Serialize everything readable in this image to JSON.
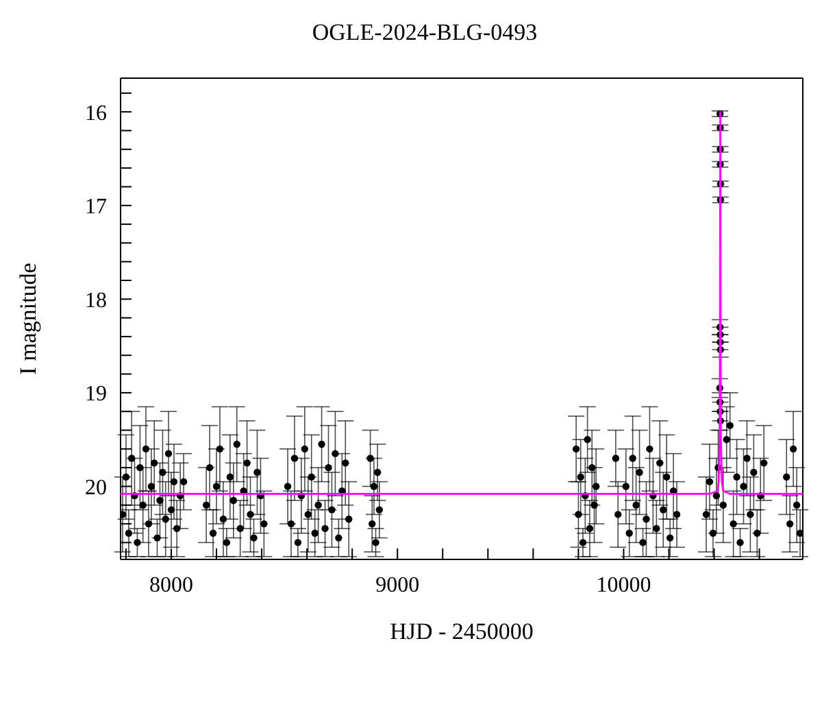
{
  "chart_data": {
    "type": "scatter",
    "title": "OGLE-2024-BLG-0493",
    "xlabel": "HJD - 2450000",
    "ylabel": "I magnitude",
    "xlim": [
      7776,
      10792
    ],
    "ylim": [
      20.78,
      15.64
    ],
    "xticks": [
      {
        "value": 7800,
        "label": null
      },
      8000,
      {
        "value": 8200,
        "label": null
      },
      {
        "value": 8400,
        "label": null
      },
      {
        "value": 8600,
        "label": null
      },
      {
        "value": 8800,
        "label": null
      },
      9000,
      {
        "value": 9200,
        "label": null
      },
      {
        "value": 9400,
        "label": null
      },
      {
        "value": 9600,
        "label": null
      },
      {
        "value": 9800,
        "label": null
      },
      10000,
      {
        "value": 10200,
        "label": null
      },
      {
        "value": 10400,
        "label": null
      },
      {
        "value": 10600,
        "label": null
      }
    ],
    "yticks": [
      {
        "value": 15.8,
        "label": null
      },
      16,
      {
        "value": 16.2,
        "label": null
      },
      {
        "value": 16.4,
        "label": null
      },
      {
        "value": 16.6,
        "label": null
      },
      {
        "value": 16.8,
        "label": null
      },
      17,
      {
        "value": 17.2,
        "label": null
      },
      {
        "value": 17.4,
        "label": null
      },
      {
        "value": 17.6,
        "label": null
      },
      {
        "value": 17.8,
        "label": null
      },
      18,
      {
        "value": 18.2,
        "label": null
      },
      {
        "value": 18.4,
        "label": null
      },
      {
        "value": 18.6,
        "label": null
      },
      {
        "value": 18.8,
        "label": null
      },
      19,
      {
        "value": 19.2,
        "label": null
      },
      {
        "value": 19.4,
        "label": null
      },
      {
        "value": 19.6,
        "label": null
      },
      {
        "value": 19.8,
        "label": null
      },
      20,
      {
        "value": 20.2,
        "label": null
      },
      {
        "value": 20.4,
        "label": null
      },
      {
        "value": 20.6,
        "label": null
      }
    ],
    "grid": false,
    "legend": false,
    "marker": "circle",
    "series": [
      {
        "color": "#000000",
        "x": [
          7785,
          7800,
          7812,
          7825,
          7838,
          7850,
          7862,
          7875,
          7888,
          7900,
          7912,
          7925,
          7938,
          7950,
          7962,
          7975,
          7988,
          8000,
          8012,
          8025,
          8040,
          8055,
          8155,
          8170,
          8185,
          8200,
          8215,
          8230,
          8245,
          8260,
          8275,
          8290,
          8305,
          8320,
          8335,
          8350,
          8365,
          8380,
          8395,
          8410,
          8515,
          8530,
          8545,
          8560,
          8575,
          8590,
          8605,
          8620,
          8635,
          8650,
          8665,
          8680,
          8695,
          8710,
          8725,
          8740,
          8755,
          8770,
          8785,
          8880,
          8888,
          8896,
          8904,
          8912,
          8920,
          9790,
          9800,
          9810,
          9820,
          9830,
          9840,
          9850,
          9860,
          9870,
          9878,
          9965,
          9975,
          10010,
          10025,
          10040,
          10055,
          10070,
          10085,
          10100,
          10115,
          10130,
          10145,
          10160,
          10175,
          10190,
          10205,
          10220,
          10235,
          10365,
          10380,
          10395,
          10410,
          10418,
          10426,
          10427,
          10427,
          10427,
          10428,
          10428,
          10426,
          10427,
          10427,
          10428,
          10425,
          10426,
          10427,
          10428,
          10440,
          10455,
          10470,
          10485,
          10500,
          10515,
          10530,
          10545,
          10560,
          10575,
          10590,
          10605,
          10620,
          10720,
          10735,
          10750,
          10765,
          10780
        ],
        "values": [
          20.3,
          19.9,
          20.5,
          19.7,
          20.1,
          20.6,
          19.8,
          20.2,
          19.6,
          20.4,
          20.0,
          19.75,
          20.55,
          20.15,
          19.85,
          20.35,
          19.65,
          20.25,
          19.95,
          20.45,
          20.1,
          19.95,
          20.2,
          19.8,
          20.5,
          20.0,
          19.6,
          20.35,
          20.6,
          19.9,
          20.15,
          19.55,
          20.45,
          20.05,
          19.75,
          20.3,
          20.55,
          19.85,
          20.1,
          20.4,
          20.0,
          20.4,
          19.7,
          20.6,
          20.1,
          19.6,
          20.3,
          19.9,
          20.5,
          20.2,
          19.55,
          20.45,
          19.8,
          20.25,
          19.65,
          20.55,
          20.05,
          19.75,
          20.35,
          19.7,
          20.4,
          20.0,
          20.6,
          19.85,
          20.25,
          19.6,
          20.3,
          19.9,
          20.6,
          20.1,
          19.5,
          20.45,
          19.8,
          20.2,
          20.0,
          19.7,
          20.3,
          20.0,
          20.5,
          19.7,
          20.2,
          19.85,
          20.6,
          20.35,
          19.6,
          20.1,
          20.45,
          19.75,
          20.25,
          19.9,
          20.55,
          20.05,
          20.3,
          20.3,
          19.95,
          20.5,
          20.1,
          19.8,
          16.02,
          16.17,
          16.4,
          16.56,
          16.77,
          16.94,
          18.3,
          18.38,
          18.46,
          18.54,
          18.95,
          19.1,
          19.2,
          19.3,
          20.2,
          19.5,
          19.35,
          20.4,
          19.9,
          20.6,
          20.0,
          19.7,
          20.3,
          19.85,
          20.5,
          20.1,
          19.75,
          19.9,
          20.4,
          19.6,
          20.2,
          20.5
        ],
        "errors": [
          0.4,
          0.45,
          0.25,
          0.5,
          0.4,
          0.15,
          0.45,
          0.4,
          0.45,
          0.35,
          0.4,
          0.45,
          0.2,
          0.4,
          0.45,
          0.4,
          0.45,
          0.4,
          0.4,
          0.3,
          0.35,
          0.3,
          0.4,
          0.45,
          0.25,
          0.4,
          0.45,
          0.4,
          0.15,
          0.45,
          0.4,
          0.4,
          0.3,
          0.4,
          0.45,
          0.4,
          0.2,
          0.45,
          0.4,
          0.35,
          0.4,
          0.35,
          0.45,
          0.15,
          0.4,
          0.45,
          0.4,
          0.45,
          0.25,
          0.4,
          0.4,
          0.3,
          0.45,
          0.4,
          0.45,
          0.2,
          0.4,
          0.45,
          0.4,
          0.3,
          0.3,
          0.3,
          0.15,
          0.3,
          0.3,
          0.35,
          0.35,
          0.4,
          0.15,
          0.4,
          0.35,
          0.3,
          0.4,
          0.4,
          0.4,
          0.3,
          0.35,
          0.4,
          0.25,
          0.45,
          0.4,
          0.45,
          0.15,
          0.4,
          0.45,
          0.4,
          0.3,
          0.45,
          0.4,
          0.45,
          0.2,
          0.4,
          0.35,
          0.4,
          0.4,
          0.25,
          0.4,
          0.4,
          0.03,
          0.03,
          0.03,
          0.03,
          0.03,
          0.03,
          0.08,
          0.08,
          0.08,
          0.08,
          0.1,
          0.1,
          0.1,
          0.1,
          0.4,
          0.35,
          0.35,
          0.35,
          0.4,
          0.15,
          0.4,
          0.4,
          0.4,
          0.4,
          0.25,
          0.4,
          0.4,
          0.4,
          0.3,
          0.4,
          0.4,
          0.25
        ]
      },
      {
        "type": "line",
        "color": "#ff00ff",
        "marker": "none",
        "x": [
          7776,
          10380,
          10415,
          10420,
          10424,
          10426,
          10427,
          10428,
          10430,
          10434,
          10440,
          10470,
          10792
        ],
        "values": [
          20.08,
          20.08,
          20.05,
          19.95,
          19.5,
          18.0,
          16.0,
          18.0,
          19.5,
          19.95,
          20.05,
          20.08,
          20.08
        ]
      }
    ]
  }
}
